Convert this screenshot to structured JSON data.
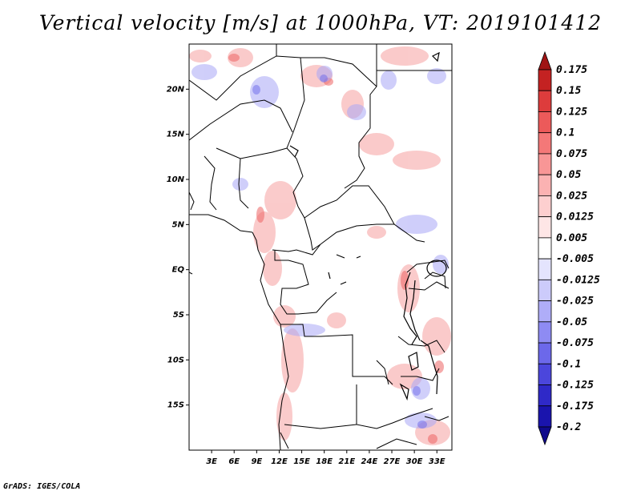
{
  "title": "Vertical velocity [m/s] at 1000hPa, VT: 2019101412",
  "credit": "GrADS: IGES/COLA",
  "chart_data": {
    "type": "heatmap",
    "title": "Vertical velocity [m/s] at 1000hPa, VT: 2019101412",
    "xlim": [
      0,
      35
    ],
    "ylim": [
      -20,
      25
    ],
    "x_ticks": [
      {
        "value": 3,
        "label": "3E"
      },
      {
        "value": 6,
        "label": "6E"
      },
      {
        "value": 9,
        "label": "9E"
      },
      {
        "value": 12,
        "label": "12E"
      },
      {
        "value": 15,
        "label": "15E"
      },
      {
        "value": 18,
        "label": "18E"
      },
      {
        "value": 21,
        "label": "21E"
      },
      {
        "value": 24,
        "label": "24E"
      },
      {
        "value": 27,
        "label": "27E"
      },
      {
        "value": 30,
        "label": "30E"
      },
      {
        "value": 33,
        "label": "33E"
      }
    ],
    "y_ticks": [
      {
        "value": 20,
        "label": "20N"
      },
      {
        "value": 15,
        "label": "15N"
      },
      {
        "value": 10,
        "label": "10N"
      },
      {
        "value": 5,
        "label": "5N"
      },
      {
        "value": 0,
        "label": "EQ"
      },
      {
        "value": -5,
        "label": "5S"
      },
      {
        "value": -10,
        "label": "10S"
      },
      {
        "value": -15,
        "label": "15S"
      }
    ],
    "colorbar": {
      "labels": [
        "0.175",
        "0.15",
        "0.125",
        "0.1",
        "0.075",
        "0.05",
        "0.025",
        "0.0125",
        "0.005",
        "-0.005",
        "-0.0125",
        "-0.025",
        "-0.05",
        "-0.075",
        "-0.1",
        "-0.125",
        "-0.175",
        "-0.2"
      ],
      "colors": [
        "#a01414",
        "#c42222",
        "#dd3c3c",
        "#ec5a5a",
        "#f47878",
        "#f89696",
        "#fbb2b2",
        "#fdcfcf",
        "#fee6e6",
        "#ffffff",
        "#e4e4fd",
        "#cccbfb",
        "#afadf8",
        "#8e8bf3",
        "#6c68ea",
        "#4b46dc",
        "#2f29c8",
        "#1a14ad",
        "#100a8c"
      ]
    }
  }
}
